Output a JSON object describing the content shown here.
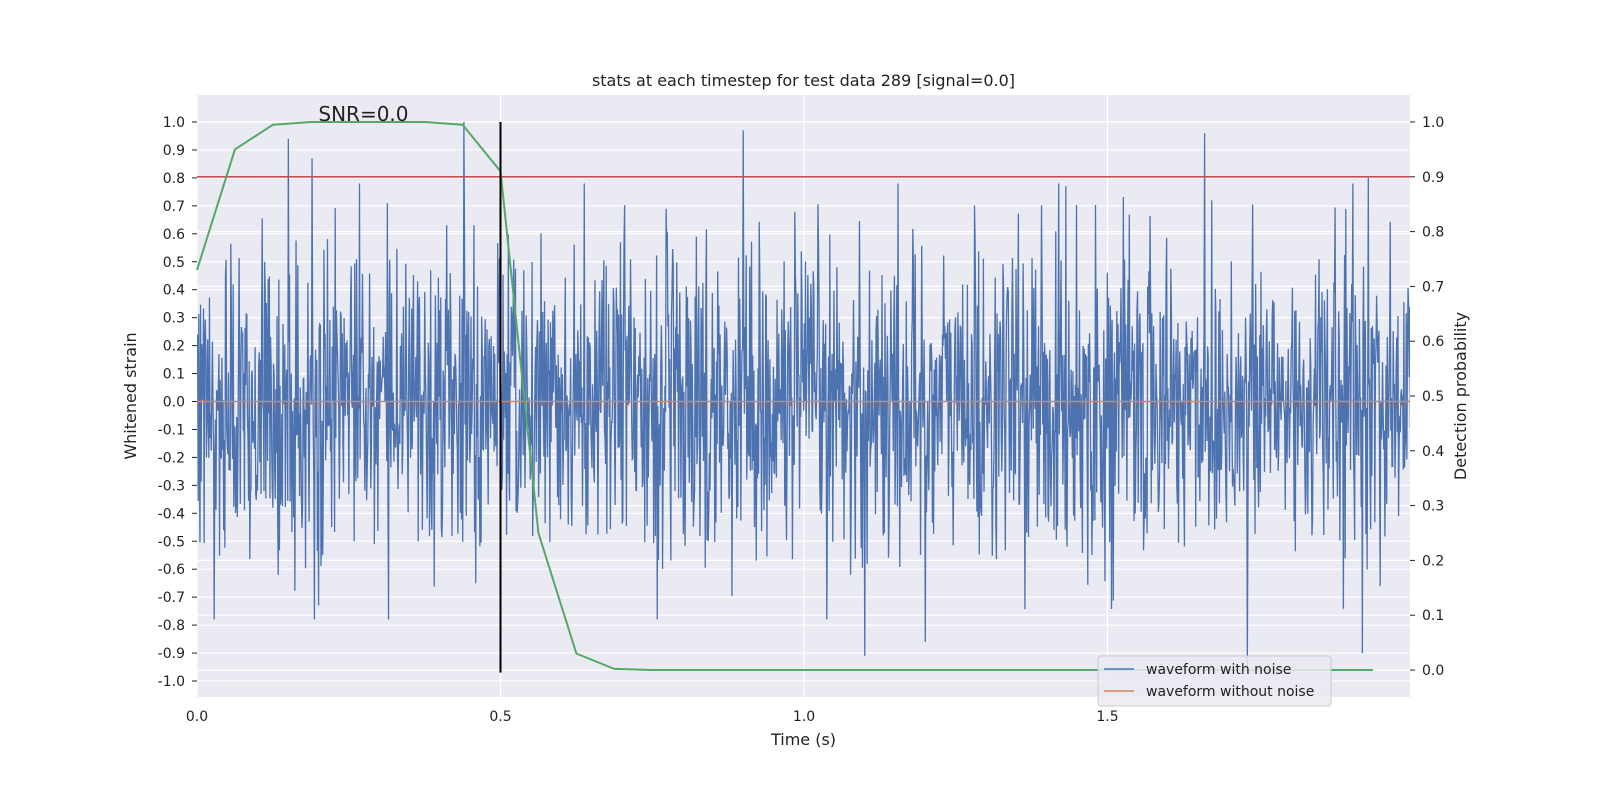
{
  "chart_data": {
    "type": "line",
    "title": "stats at each timestep for test data 289 [signal=0.0]",
    "xlabel": "Time (s)",
    "ylabel_left": "Whitened strain",
    "ylabel_right": "Detection probability",
    "xlim": [
      0.0,
      2.0
    ],
    "ylim_left": [
      -1.1,
      1.1
    ],
    "ylim_right": [
      -0.05,
      1.05
    ],
    "x_ticks": [
      {
        "value": 0.0,
        "label": "0.0"
      },
      {
        "value": 0.5,
        "label": "0.5"
      },
      {
        "value": 1.0,
        "label": "1.0"
      },
      {
        "value": 1.5,
        "label": "1.5"
      }
    ],
    "y_ticks_left": [
      {
        "value": 1.0,
        "label": "1.0"
      },
      {
        "value": 0.9,
        "label": "0.9"
      },
      {
        "value": 0.8,
        "label": "0.8"
      },
      {
        "value": 0.7,
        "label": "0.7"
      },
      {
        "value": 0.6,
        "label": "0.6"
      },
      {
        "value": 0.5,
        "label": "0.5"
      },
      {
        "value": 0.4,
        "label": "0.4"
      },
      {
        "value": 0.3,
        "label": "0.3"
      },
      {
        "value": 0.2,
        "label": "0.2"
      },
      {
        "value": 0.1,
        "label": "0.1"
      },
      {
        "value": 0.0,
        "label": "0.0"
      },
      {
        "value": -0.1,
        "label": "-0.1"
      },
      {
        "value": -0.2,
        "label": "-0.2"
      },
      {
        "value": -0.3,
        "label": "-0.3"
      },
      {
        "value": -0.4,
        "label": "-0.4"
      },
      {
        "value": -0.5,
        "label": "-0.5"
      },
      {
        "value": -0.6,
        "label": "-0.6"
      },
      {
        "value": -0.7,
        "label": "-0.7"
      },
      {
        "value": -0.8,
        "label": "-0.8"
      },
      {
        "value": -0.9,
        "label": "-0.9"
      },
      {
        "value": -1.0,
        "label": "-1.0"
      }
    ],
    "y_ticks_right": [
      {
        "value": 1.0,
        "label": "1.0"
      },
      {
        "value": 0.9,
        "label": "0.9"
      },
      {
        "value": 0.8,
        "label": "0.8"
      },
      {
        "value": 0.7,
        "label": "0.7"
      },
      {
        "value": 0.6,
        "label": "0.6"
      },
      {
        "value": 0.5,
        "label": "0.5"
      },
      {
        "value": 0.4,
        "label": "0.4"
      },
      {
        "value": 0.3,
        "label": "0.3"
      },
      {
        "value": 0.2,
        "label": "0.2"
      },
      {
        "value": 0.1,
        "label": "0.1"
      },
      {
        "value": 0.0,
        "label": "0.0"
      }
    ],
    "grid": true,
    "background_color": "#eaeaf2",
    "grid_color": "#ffffff",
    "series": [
      {
        "name": "waveform with noise",
        "color": "#4c72b0",
        "axis": "left",
        "x_range": [
          0.0,
          2.0
        ],
        "n_points": 2048,
        "approx_std": 0.28,
        "noise_seed": 289,
        "notable_peaks": [
          {
            "x": 0.15,
            "y": 0.94
          },
          {
            "x": 0.19,
            "y": 0.87
          },
          {
            "x": 0.2,
            "y": -0.73
          },
          {
            "x": 0.44,
            "y": 1.0
          },
          {
            "x": 0.9,
            "y": 0.97
          },
          {
            "x": 1.1,
            "y": -0.91
          },
          {
            "x": 1.2,
            "y": -0.86
          },
          {
            "x": 1.66,
            "y": 0.96
          },
          {
            "x": 1.73,
            "y": -0.95
          },
          {
            "x": 1.92,
            "y": -0.9
          },
          {
            "x": 1.93,
            "y": 0.8
          }
        ]
      },
      {
        "name": "waveform without noise",
        "color": "#dd8452",
        "axis": "left",
        "x": [
          0.0,
          2.0
        ],
        "y": [
          0.0,
          0.0
        ]
      },
      {
        "name": "detection probability",
        "color": "#55a868",
        "axis": "right",
        "x": [
          0.0,
          0.0625,
          0.125,
          0.1875,
          0.25,
          0.3125,
          0.375,
          0.4375,
          0.5,
          0.5625,
          0.625,
          0.6875,
          0.75,
          0.8125,
          0.875,
          0.9375,
          1.0,
          1.0625,
          1.125,
          1.1875,
          1.25,
          1.3125,
          1.375,
          1.4375,
          1.5,
          1.5625,
          1.625,
          1.6875,
          1.75,
          1.8125,
          1.875,
          1.9375
        ],
        "y": [
          0.73,
          0.95,
          0.995,
          1.0,
          1.0,
          1.0,
          1.0,
          0.995,
          0.91,
          0.25,
          0.03,
          0.002,
          0.0,
          0.0,
          0.0,
          0.0,
          0.0,
          0.0,
          0.0,
          0.0,
          0.0,
          0.0,
          0.0,
          0.0,
          0.0,
          0.0,
          0.0,
          0.0,
          0.0,
          0.0,
          0.0,
          0.0
        ]
      }
    ],
    "threshold_line": {
      "axis": "right",
      "value": 0.9,
      "color": "#c44e52"
    },
    "marker_line": {
      "x": 0.5,
      "y_range": [
        -0.97,
        1.0
      ],
      "color": "#000000"
    },
    "annotation": {
      "text": "SNR=0.0",
      "x": 0.2,
      "y": 1.0
    },
    "legend": {
      "location": "lower-right",
      "entries": [
        {
          "label": "waveform with noise",
          "color": "#4c72b0"
        },
        {
          "label": "waveform without noise",
          "color": "#dd8452"
        }
      ]
    }
  }
}
